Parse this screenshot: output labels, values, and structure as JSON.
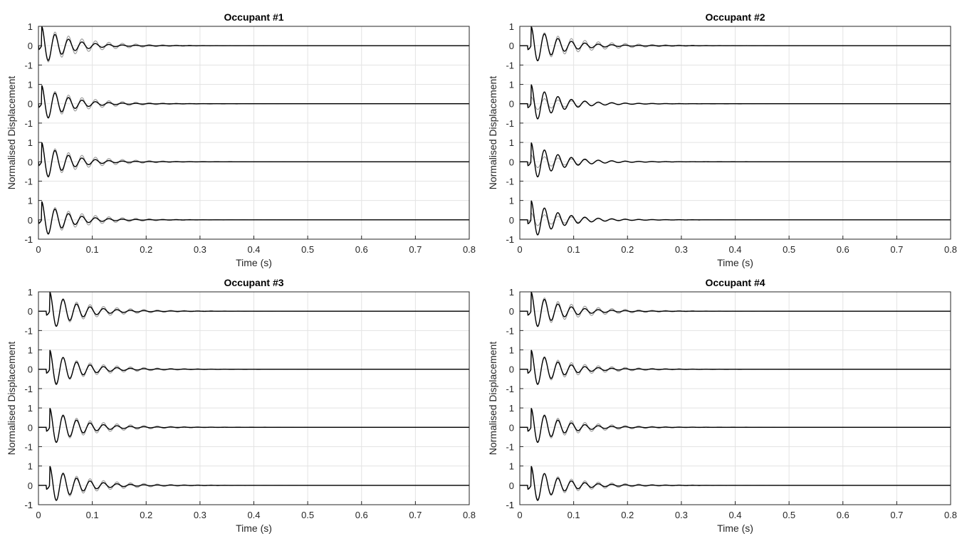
{
  "chart_data": [
    {
      "type": "line",
      "title": "Occupant #1",
      "xlabel": "Time (s)",
      "ylabel": "Normalised Displacement",
      "xlim": [
        0,
        0.8
      ],
      "x_ticks": [
        "0",
        "0.1",
        "0.2",
        "0.3",
        "0.4",
        "0.5",
        "0.6",
        "0.7",
        "0.8"
      ],
      "y_ticks": [
        "-1",
        "0",
        "1"
      ],
      "stacked_traces": 4,
      "grid": true,
      "series": [
        {
          "color": "#999999",
          "peak_time": 0.012,
          "amplitudes": [
            1.0,
            0.9,
            0.95,
            0.9
          ],
          "frequency_hz": 40,
          "decay": 14
        },
        {
          "color": "#000000",
          "peak_time": 0.012,
          "amplitudes": [
            1.0,
            0.95,
            1.0,
            0.95
          ],
          "frequency_hz": 40,
          "decay": 22
        }
      ]
    },
    {
      "type": "line",
      "title": "Occupant #2",
      "xlabel": "Time (s)",
      "ylabel": "Normalised Displacement",
      "xlim": [
        0,
        0.8
      ],
      "x_ticks": [
        "0",
        "0.1",
        "0.2",
        "0.3",
        "0.4",
        "0.5",
        "0.6",
        "0.7",
        "0.8"
      ],
      "y_ticks": [
        "-1",
        "0",
        "1"
      ],
      "stacked_traces": 4,
      "grid": true,
      "series": [
        {
          "color": "#999999",
          "peak_time": 0.027,
          "amplitudes": [
            0.9,
            0.35,
            0.35,
            0.35
          ],
          "frequency_hz": 40,
          "decay": 12
        },
        {
          "color": "#000000",
          "peak_time": 0.027,
          "amplitudes": [
            1.0,
            1.0,
            1.0,
            1.0
          ],
          "frequency_hz": 40,
          "decay": 20
        }
      ]
    },
    {
      "type": "line",
      "title": "Occupant #3",
      "xlabel": "Time (s)",
      "ylabel": "Normalised Displacement",
      "xlim": [
        0,
        0.8
      ],
      "x_ticks": [
        "0",
        "0.1",
        "0.2",
        "0.3",
        "0.4",
        "0.5",
        "0.6",
        "0.7",
        "0.8"
      ],
      "y_ticks": [
        "-1",
        "0",
        "1"
      ],
      "stacked_traces": 4,
      "grid": true,
      "series": [
        {
          "color": "#999999",
          "peak_time": 0.027,
          "amplitudes": [
            0.9,
            0.85,
            0.9,
            0.9
          ],
          "frequency_hz": 40,
          "decay": 13
        },
        {
          "color": "#000000",
          "peak_time": 0.027,
          "amplitudes": [
            1.0,
            1.0,
            1.0,
            1.0
          ],
          "frequency_hz": 40,
          "decay": 20
        }
      ]
    },
    {
      "type": "line",
      "title": "Occupant #4",
      "xlabel": "Time (s)",
      "ylabel": "Normalised Displacement",
      "xlim": [
        0,
        0.8
      ],
      "x_ticks": [
        "0",
        "0.1",
        "0.2",
        "0.3",
        "0.4",
        "0.5",
        "0.6",
        "0.7",
        "0.8"
      ],
      "y_ticks": [
        "-1",
        "0",
        "1"
      ],
      "stacked_traces": 4,
      "grid": true,
      "series": [
        {
          "color": "#999999",
          "peak_time": 0.027,
          "amplitudes": [
            0.95,
            0.9,
            0.9,
            0.85
          ],
          "frequency_hz": 40,
          "decay": 13
        },
        {
          "color": "#000000",
          "peak_time": 0.027,
          "amplitudes": [
            1.0,
            1.0,
            1.0,
            1.0
          ],
          "frequency_hz": 40,
          "decay": 20
        }
      ]
    }
  ]
}
